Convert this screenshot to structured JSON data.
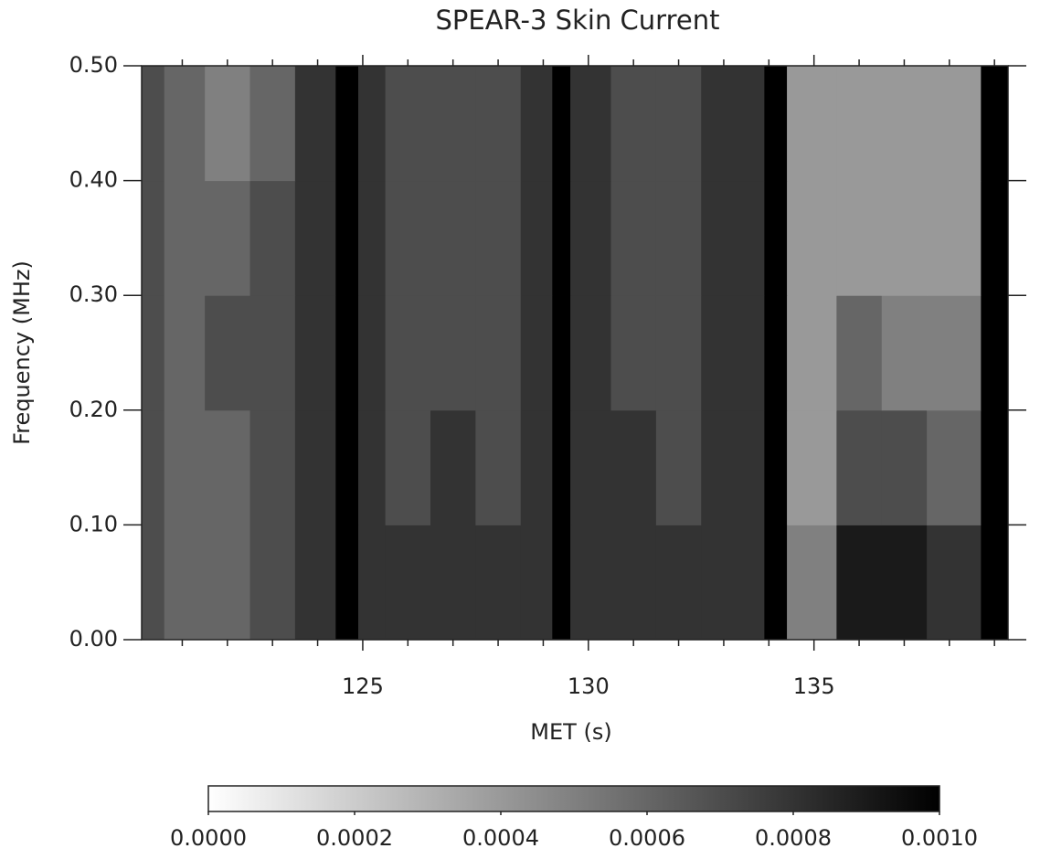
{
  "chart_data": {
    "type": "heatmap",
    "title": "SPEAR-3 Skin Current",
    "x_label": "MET (s)",
    "y_label": "Frequency (MHz)",
    "xlim": [
      120.1,
      139.3
    ],
    "ylim": [
      0,
      0.5
    ],
    "xticks": [
      125,
      130,
      135
    ],
    "xminorticks": [
      121,
      122,
      123,
      124,
      126,
      127,
      128,
      129,
      131,
      132,
      133,
      134,
      136,
      137,
      138,
      139
    ],
    "yticks": [
      {
        "value": 0,
        "label": "0.00"
      },
      {
        "value": 0.1,
        "label": "0.10"
      },
      {
        "value": 0.2,
        "label": "0.20"
      },
      {
        "value": 0.3,
        "label": "0.30"
      },
      {
        "value": 0.4,
        "label": "0.40"
      },
      {
        "value": 0.5,
        "label": "0.50"
      }
    ],
    "x_edges": [
      120.1,
      120.6,
      121.5,
      122.5,
      123.5,
      124.4,
      124.9,
      125.5,
      126.5,
      127.5,
      128.5,
      129.2,
      129.6,
      130.5,
      131.5,
      132.5,
      133.9,
      134.4,
      135.5,
      136.5,
      137.5,
      138.7,
      139.3
    ],
    "y_edges": [
      0,
      0.1,
      0.2,
      0.3,
      0.4,
      0.5
    ],
    "z": [
      [
        0.0007,
        0.0006,
        0.0006,
        0.0007,
        0.0008,
        0.001,
        0.0008,
        0.0008,
        0.0008,
        0.0008,
        0.0008,
        0.001,
        0.0008,
        0.0008,
        0.0008,
        0.0008,
        0.001,
        0.0005,
        0.0009,
        0.0009,
        0.0008,
        0.001
      ],
      [
        0.0007,
        0.0006,
        0.0006,
        0.0007,
        0.0008,
        0.001,
        0.0008,
        0.0007,
        0.0008,
        0.0007,
        0.0008,
        0.001,
        0.0008,
        0.0008,
        0.0007,
        0.0008,
        0.001,
        0.0004,
        0.0007,
        0.0007,
        0.0006,
        0.001
      ],
      [
        0.0007,
        0.0006,
        0.0007,
        0.0007,
        0.0008,
        0.001,
        0.0008,
        0.0007,
        0.0007,
        0.0007,
        0.0008,
        0.001,
        0.0008,
        0.0007,
        0.0007,
        0.0008,
        0.001,
        0.0004,
        0.0006,
        0.0005,
        0.0005,
        0.001
      ],
      [
        0.0007,
        0.0006,
        0.0006,
        0.0007,
        0.0008,
        0.001,
        0.0008,
        0.0007,
        0.0007,
        0.0007,
        0.0008,
        0.001,
        0.0008,
        0.0007,
        0.0007,
        0.0008,
        0.001,
        0.0004,
        0.0004,
        0.0004,
        0.0004,
        0.001
      ],
      [
        0.0007,
        0.0006,
        0.0005,
        0.0006,
        0.0008,
        0.001,
        0.0008,
        0.0007,
        0.0007,
        0.0007,
        0.0008,
        0.001,
        0.0008,
        0.0007,
        0.0007,
        0.0008,
        0.001,
        0.0004,
        0.0004,
        0.0004,
        0.0004,
        0.001
      ]
    ],
    "clim": [
      0,
      0.001
    ],
    "cticks": [
      {
        "value": 0,
        "label": "0.0000"
      },
      {
        "value": 0.0002,
        "label": "0.0002"
      },
      {
        "value": 0.0004,
        "label": "0.0004"
      },
      {
        "value": 0.0006,
        "label": "0.0006"
      },
      {
        "value": 0.0008,
        "label": "0.0008"
      },
      {
        "value": 0.001,
        "label": "0.0010"
      }
    ]
  }
}
